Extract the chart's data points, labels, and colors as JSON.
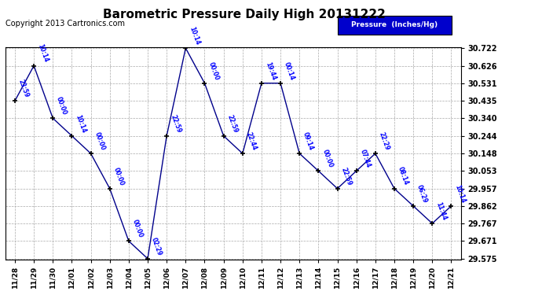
{
  "title": "Barometric Pressure Daily High 20131222",
  "copyright": "Copyright 2013 Cartronics.com",
  "legend_label": "Pressure  (Inches/Hg)",
  "x_labels": [
    "11/28",
    "11/29",
    "11/30",
    "12/01",
    "12/02",
    "12/03",
    "12/04",
    "12/05",
    "12/06",
    "12/07",
    "12/08",
    "12/09",
    "12/10",
    "12/11",
    "12/12",
    "12/13",
    "12/14",
    "12/15",
    "12/16",
    "12/17",
    "12/18",
    "12/19",
    "12/20",
    "12/21"
  ],
  "y_values": [
    30.435,
    30.626,
    30.34,
    30.244,
    30.148,
    29.957,
    29.671,
    29.575,
    30.244,
    30.722,
    30.531,
    30.244,
    30.148,
    30.531,
    30.531,
    30.148,
    30.053,
    29.957,
    30.053,
    30.148,
    29.957,
    29.862,
    29.767,
    29.862
  ],
  "point_labels": [
    "23:59",
    "10:14",
    "00:00",
    "10:14",
    "00:00",
    "00:00",
    "00:00",
    "02:29",
    "22:59",
    "10:14",
    "00:00",
    "22:59",
    "22:44",
    "19:44",
    "00:14",
    "09:14",
    "00:00",
    "22:59",
    "07:44",
    "22:29",
    "08:14",
    "06:29",
    "11:44",
    "10:14"
  ],
  "ylim_min": 29.575,
  "ylim_max": 30.722,
  "yticks": [
    30.722,
    30.626,
    30.531,
    30.435,
    30.34,
    30.244,
    30.148,
    30.053,
    29.957,
    29.862,
    29.767,
    29.671,
    29.575
  ],
  "line_color": "#00008B",
  "marker_color": "#000000",
  "label_color": "#0000FF",
  "background_color": "#FFFFFF",
  "grid_color": "#AAAAAA",
  "title_fontsize": 11,
  "copyright_fontsize": 7,
  "legend_bg": "#0000CC",
  "legend_text_color": "#FFFFFF"
}
